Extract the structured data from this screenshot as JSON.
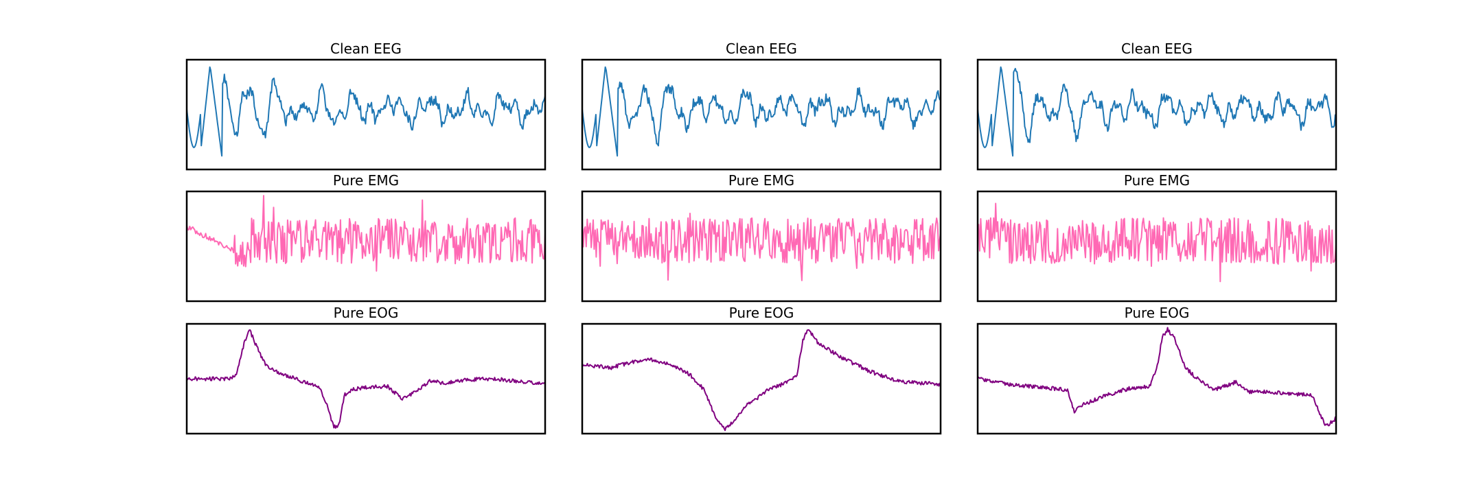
{
  "figure": {
    "layout": "3 rows x 3 columns",
    "axes_visible": false
  },
  "chart_data": [
    {
      "type": "line",
      "title": "Clean EEG",
      "row": 0,
      "col": 0,
      "signal": "eeg",
      "color": "#1f77b4",
      "seed": 11
    },
    {
      "type": "line",
      "title": "Clean EEG",
      "row": 0,
      "col": 1,
      "signal": "eeg",
      "color": "#1f77b4",
      "seed": 23
    },
    {
      "type": "line",
      "title": "Clean EEG",
      "row": 0,
      "col": 2,
      "signal": "eeg",
      "color": "#1f77b4",
      "seed": 37
    },
    {
      "type": "line",
      "title": "Pure EMG",
      "row": 1,
      "col": 0,
      "signal": "emg-drift",
      "color": "#ff69b4",
      "seed": 41
    },
    {
      "type": "line",
      "title": "Pure EMG",
      "row": 1,
      "col": 1,
      "signal": "emg",
      "color": "#ff69b4",
      "seed": 53
    },
    {
      "type": "line",
      "title": "Pure EMG",
      "row": 1,
      "col": 2,
      "signal": "emg",
      "color": "#ff69b4",
      "seed": 67
    },
    {
      "type": "line",
      "title": "Pure EOG",
      "row": 2,
      "col": 0,
      "signal": "eog",
      "color": "#800080",
      "seed": 71,
      "keypoints": [
        [
          0,
          0.5
        ],
        [
          0.12,
          0.5
        ],
        [
          0.14,
          0.45
        ],
        [
          0.16,
          0.18
        ],
        [
          0.175,
          0.05
        ],
        [
          0.19,
          0.17
        ],
        [
          0.22,
          0.38
        ],
        [
          0.26,
          0.45
        ],
        [
          0.32,
          0.52
        ],
        [
          0.37,
          0.58
        ],
        [
          0.39,
          0.72
        ],
        [
          0.41,
          0.94
        ],
        [
          0.425,
          0.92
        ],
        [
          0.44,
          0.65
        ],
        [
          0.46,
          0.6
        ],
        [
          0.5,
          0.58
        ],
        [
          0.56,
          0.57
        ],
        [
          0.6,
          0.68
        ],
        [
          0.64,
          0.62
        ],
        [
          0.68,
          0.52
        ],
        [
          0.72,
          0.54
        ],
        [
          0.78,
          0.51
        ],
        [
          0.85,
          0.5
        ],
        [
          0.92,
          0.52
        ],
        [
          1.0,
          0.55
        ]
      ]
    },
    {
      "type": "line",
      "title": "Pure EOG",
      "row": 2,
      "col": 1,
      "signal": "eog",
      "color": "#800080",
      "seed": 83,
      "keypoints": [
        [
          0,
          0.37
        ],
        [
          0.08,
          0.4
        ],
        [
          0.14,
          0.35
        ],
        [
          0.18,
          0.32
        ],
        [
          0.24,
          0.36
        ],
        [
          0.3,
          0.46
        ],
        [
          0.34,
          0.6
        ],
        [
          0.37,
          0.84
        ],
        [
          0.4,
          0.96
        ],
        [
          0.43,
          0.86
        ],
        [
          0.46,
          0.74
        ],
        [
          0.52,
          0.6
        ],
        [
          0.58,
          0.52
        ],
        [
          0.6,
          0.46
        ],
        [
          0.615,
          0.16
        ],
        [
          0.63,
          0.05
        ],
        [
          0.66,
          0.18
        ],
        [
          0.72,
          0.3
        ],
        [
          0.8,
          0.43
        ],
        [
          0.88,
          0.52
        ],
        [
          0.94,
          0.54
        ],
        [
          1.0,
          0.55
        ]
      ]
    },
    {
      "type": "line",
      "title": "Pure EOG",
      "row": 2,
      "col": 2,
      "signal": "eog",
      "color": "#800080",
      "seed": 97,
      "keypoints": [
        [
          0,
          0.5
        ],
        [
          0.08,
          0.55
        ],
        [
          0.18,
          0.58
        ],
        [
          0.25,
          0.6
        ],
        [
          0.27,
          0.8
        ],
        [
          0.29,
          0.74
        ],
        [
          0.36,
          0.65
        ],
        [
          0.42,
          0.59
        ],
        [
          0.48,
          0.57
        ],
        [
          0.5,
          0.4
        ],
        [
          0.515,
          0.12
        ],
        [
          0.53,
          0.05
        ],
        [
          0.55,
          0.14
        ],
        [
          0.58,
          0.4
        ],
        [
          0.62,
          0.52
        ],
        [
          0.66,
          0.6
        ],
        [
          0.72,
          0.53
        ],
        [
          0.76,
          0.62
        ],
        [
          0.82,
          0.62
        ],
        [
          0.88,
          0.64
        ],
        [
          0.92,
          0.64
        ],
        [
          0.935,
          0.66
        ],
        [
          0.97,
          0.93
        ],
        [
          0.985,
          0.9
        ],
        [
          1.0,
          0.86
        ]
      ]
    }
  ]
}
